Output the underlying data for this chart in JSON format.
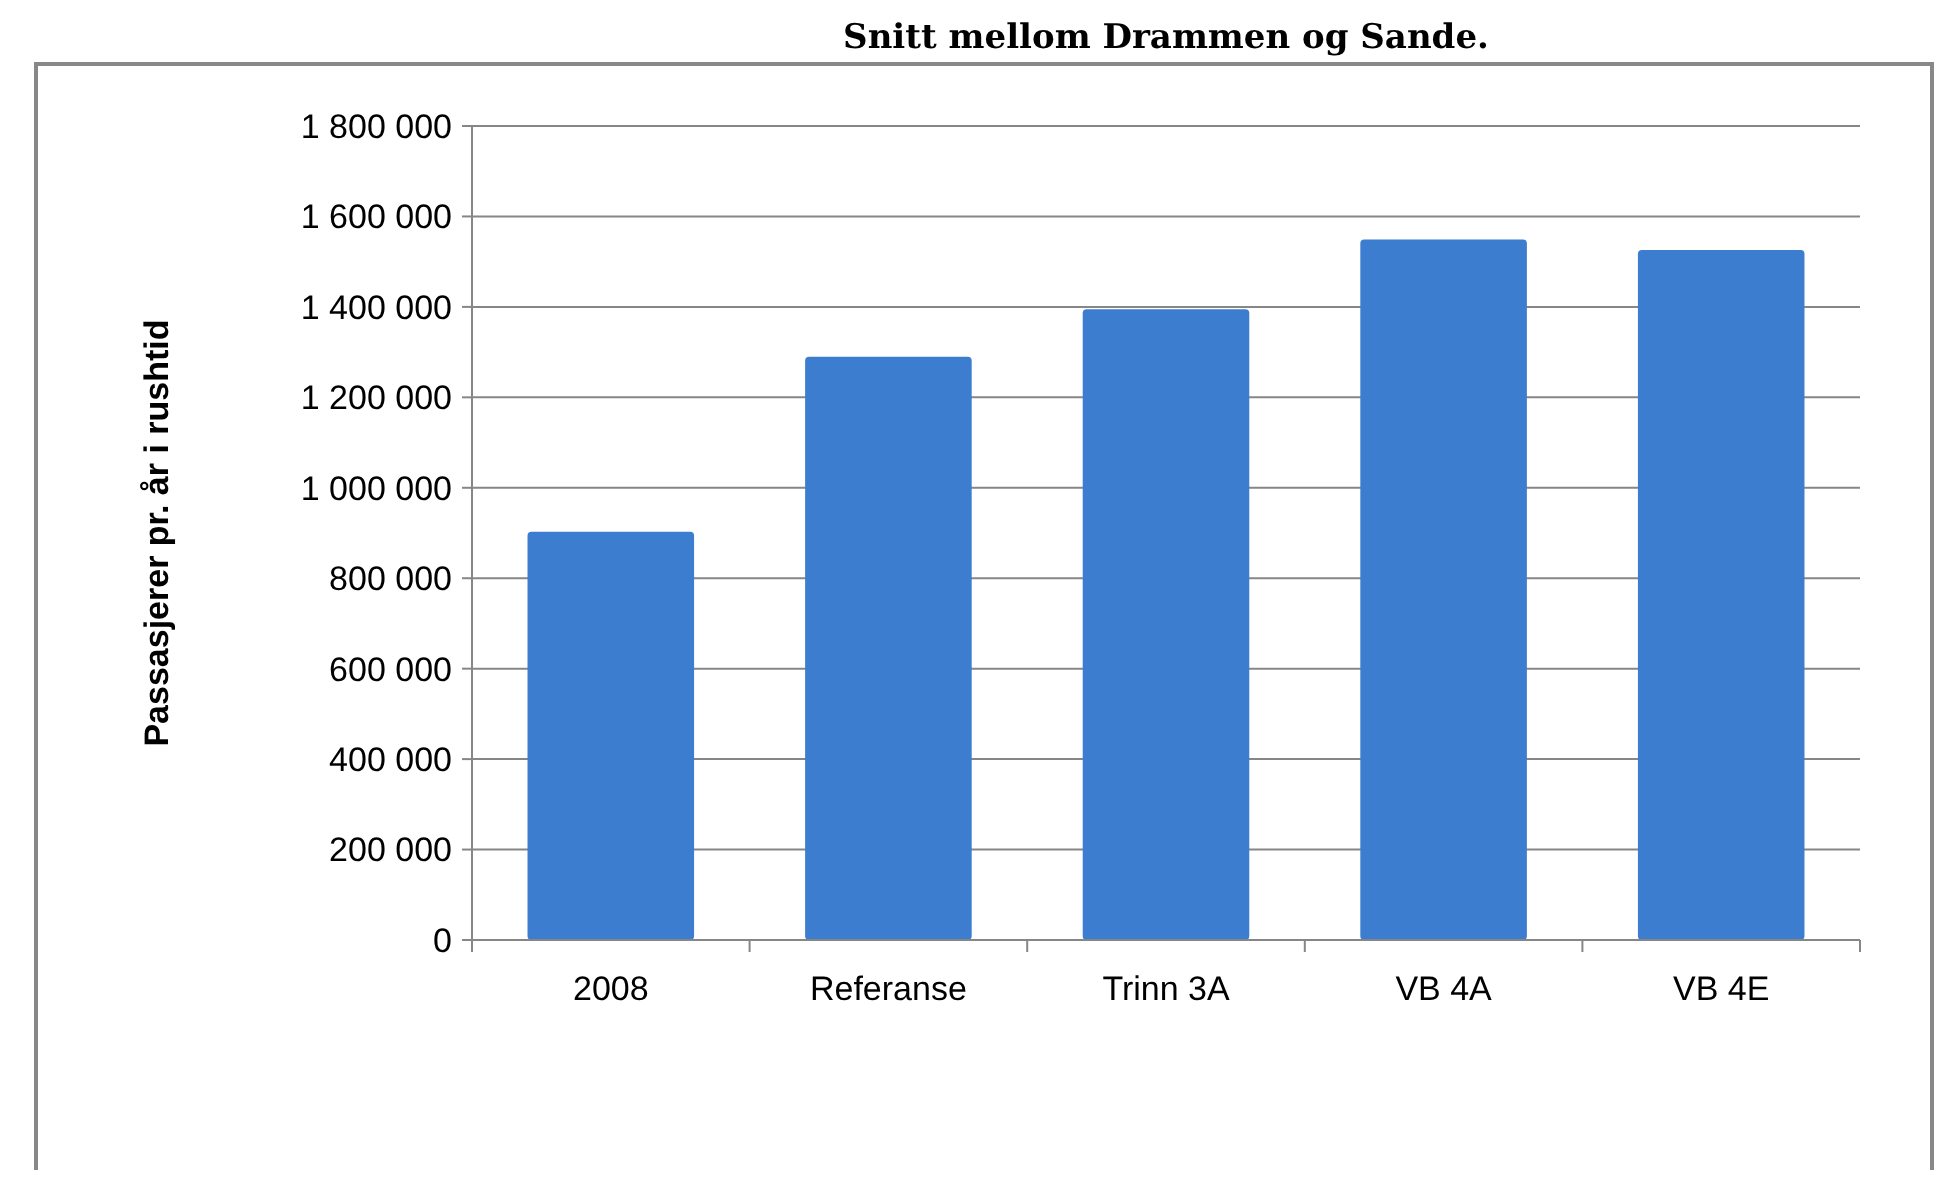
{
  "chart_data": {
    "type": "bar",
    "title": "Snitt mellom Drammen og Sande.",
    "ylabel": "Passasjerer pr. år i rushtid",
    "categories": [
      "2008",
      "Referanse",
      "Trinn 3A",
      "VB 4A",
      "VB 4E"
    ],
    "values": [
      903000,
      1290000,
      1395000,
      1549000,
      1526000
    ],
    "color": "#3c7dd0",
    "ylim": [
      0,
      1800000
    ],
    "yticks": [
      {
        "value": 0,
        "label": "0"
      },
      {
        "value": 200000,
        "label": "200 000"
      },
      {
        "value": 400000,
        "label": "400 000"
      },
      {
        "value": 600000,
        "label": "600 000"
      },
      {
        "value": 800000,
        "label": "800 000"
      },
      {
        "value": 1000000,
        "label": "1 000 000"
      },
      {
        "value": 1200000,
        "label": "1 200 000"
      },
      {
        "value": 1400000,
        "label": "1 400 000"
      },
      {
        "value": 1600000,
        "label": "1 600 000"
      },
      {
        "value": 1800000,
        "label": "1 800 000"
      }
    ],
    "grid": "y"
  }
}
